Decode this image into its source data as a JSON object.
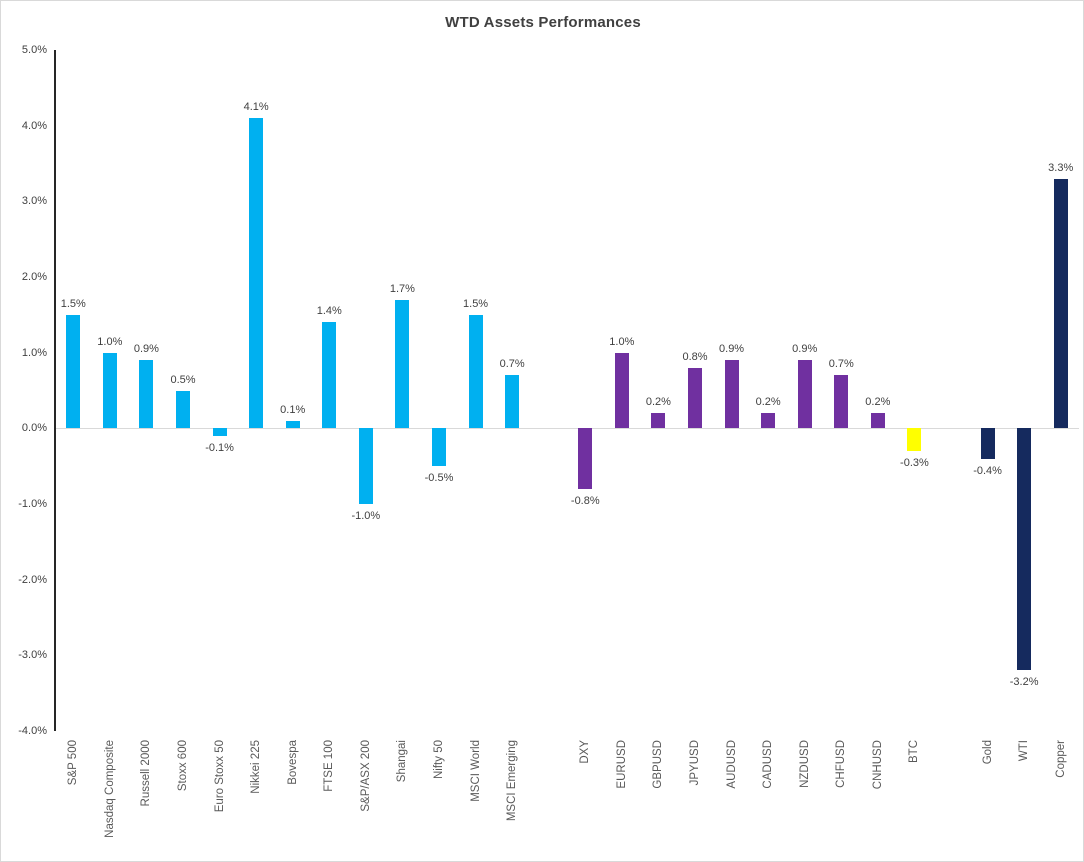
{
  "chart_data": {
    "type": "bar",
    "title": "WTD Assets Performances",
    "xlabel": "",
    "ylabel": "",
    "ylim": [
      -4.0,
      5.0
    ],
    "ytick_step": 1.0,
    "ytick_labels": [
      "5.0%",
      "4.0%",
      "3.0%",
      "2.0%",
      "1.0%",
      "0.0%",
      "-1.0%",
      "-2.0%",
      "-3.0%",
      "-4.0%"
    ],
    "grid": false,
    "legend": false,
    "value_suffix": "%",
    "colors": {
      "equity_indices": "#00B0F0",
      "currencies": "#7030A0",
      "crypto": "#FFFF00",
      "commodities": "#152A5E",
      "axis": "#262626",
      "zero_line": "#d9d9d9",
      "title_text": "#404040",
      "tick_text": "#404040",
      "category_text": "#595959"
    },
    "groups": [
      {
        "name": "equity-indices",
        "color": "#00B0F0",
        "gap_before": false,
        "bars": [
          {
            "label": "S&P 500",
            "value": 1.5,
            "value_label": "1.5%"
          },
          {
            "label": "Nasdaq Composite",
            "value": 1.0,
            "value_label": "1.0%"
          },
          {
            "label": "Russell 2000",
            "value": 0.9,
            "value_label": "0.9%"
          },
          {
            "label": "Stoxx 600",
            "value": 0.5,
            "value_label": "0.5%"
          },
          {
            "label": "Euro Stoxx 50",
            "value": -0.1,
            "value_label": "-0.1%"
          },
          {
            "label": "Nikkei 225",
            "value": 4.1,
            "value_label": "4.1%"
          },
          {
            "label": "Bovespa",
            "value": 0.1,
            "value_label": "0.1%"
          },
          {
            "label": "FTSE 100",
            "value": 1.4,
            "value_label": "1.4%"
          },
          {
            "label": "S&P/ASX 200",
            "value": -1.0,
            "value_label": "-1.0%"
          },
          {
            "label": "Shangai",
            "value": 1.7,
            "value_label": "1.7%"
          },
          {
            "label": "Nifty 50",
            "value": -0.5,
            "value_label": "-0.5%"
          },
          {
            "label": "MSCI World",
            "value": 1.5,
            "value_label": "1.5%"
          },
          {
            "label": "MSCI Emerging",
            "value": 0.7,
            "value_label": "0.7%"
          }
        ]
      },
      {
        "name": "currencies",
        "color": "#7030A0",
        "gap_before": true,
        "bars": [
          {
            "label": "DXY",
            "value": -0.8,
            "value_label": "-0.8%"
          },
          {
            "label": "EURUSD",
            "value": 1.0,
            "value_label": "1.0%"
          },
          {
            "label": "GBPUSD",
            "value": 0.2,
            "value_label": "0.2%"
          },
          {
            "label": "JPYUSD",
            "value": 0.8,
            "value_label": "0.8%"
          },
          {
            "label": "AUDUSD",
            "value": 0.9,
            "value_label": "0.9%"
          },
          {
            "label": "CADUSD",
            "value": 0.2,
            "value_label": "0.2%"
          },
          {
            "label": "NZDUSD",
            "value": 0.9,
            "value_label": "0.9%"
          },
          {
            "label": "CHFUSD",
            "value": 0.7,
            "value_label": "0.7%"
          },
          {
            "label": "CNHUSD",
            "value": 0.2,
            "value_label": "0.2%"
          }
        ]
      },
      {
        "name": "crypto",
        "color": "#FFFF00",
        "gap_before": false,
        "bars": [
          {
            "label": "BTC",
            "value": -0.3,
            "value_label": "-0.3%"
          }
        ]
      },
      {
        "name": "commodities",
        "color": "#152A5E",
        "gap_before": true,
        "bars": [
          {
            "label": "Gold",
            "value": -0.4,
            "value_label": "-0.4%"
          },
          {
            "label": "WTI",
            "value": -3.2,
            "value_label": "-3.2%"
          },
          {
            "label": "Copper",
            "value": 3.3,
            "value_label": "3.3%"
          }
        ]
      }
    ]
  }
}
